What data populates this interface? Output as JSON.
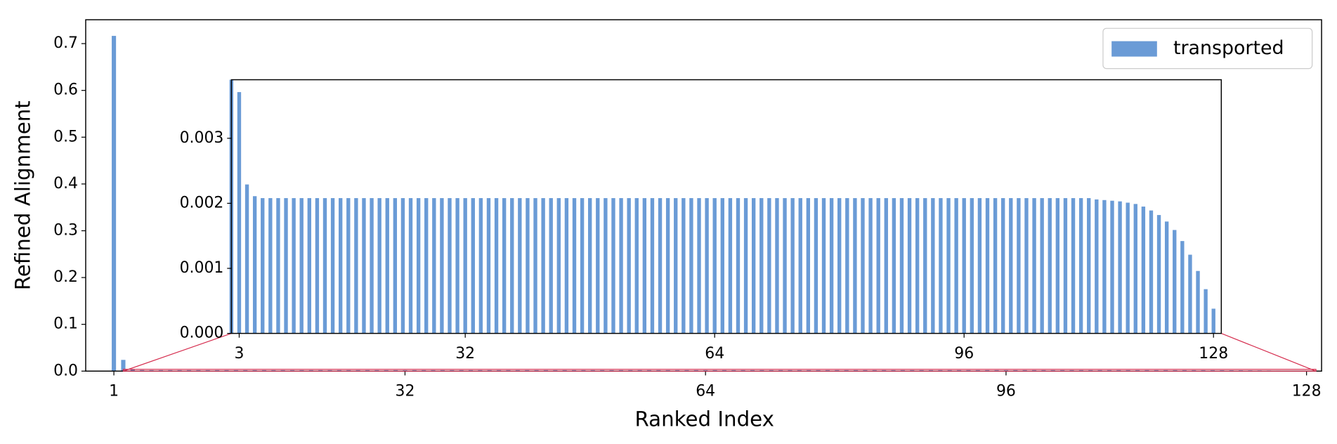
{
  "chart_data": {
    "type": "bar",
    "xlabel": "Ranked Index",
    "ylabel": "Refined Alignment",
    "x": [
      1,
      2,
      3,
      4,
      5,
      6,
      7,
      8,
      9,
      10,
      11,
      12,
      13,
      14,
      15,
      16,
      17,
      18,
      19,
      20,
      21,
      22,
      23,
      24,
      25,
      26,
      27,
      28,
      29,
      30,
      31,
      32,
      33,
      34,
      35,
      36,
      37,
      38,
      39,
      40,
      41,
      42,
      43,
      44,
      45,
      46,
      47,
      48,
      49,
      50,
      51,
      52,
      53,
      54,
      55,
      56,
      57,
      58,
      59,
      60,
      61,
      62,
      63,
      64,
      65,
      66,
      67,
      68,
      69,
      70,
      71,
      72,
      73,
      74,
      75,
      76,
      77,
      78,
      79,
      80,
      81,
      82,
      83,
      84,
      85,
      86,
      87,
      88,
      89,
      90,
      91,
      92,
      93,
      94,
      95,
      96,
      97,
      98,
      99,
      100,
      101,
      102,
      103,
      104,
      105,
      106,
      107,
      108,
      109,
      110,
      111,
      112,
      113,
      114,
      115,
      116,
      117,
      118,
      119,
      120,
      121,
      122,
      123,
      124,
      125,
      126,
      127,
      128
    ],
    "series": [
      {
        "name": "transported",
        "color": "#6a9bd6",
        "values": [
          0.7165,
          0.024,
          0.00371,
          0.00229,
          0.00211,
          0.00208,
          0.00208,
          0.00208,
          0.00208,
          0.00208,
          0.00208,
          0.00208,
          0.00208,
          0.00208,
          0.00208,
          0.00208,
          0.00208,
          0.00208,
          0.00208,
          0.00208,
          0.00208,
          0.00208,
          0.00208,
          0.00208,
          0.00208,
          0.00208,
          0.00208,
          0.00208,
          0.00208,
          0.00208,
          0.00208,
          0.00208,
          0.00208,
          0.00208,
          0.00208,
          0.00208,
          0.00208,
          0.00208,
          0.00208,
          0.00208,
          0.00208,
          0.00208,
          0.00208,
          0.00208,
          0.00208,
          0.00208,
          0.00208,
          0.00208,
          0.00208,
          0.00208,
          0.00208,
          0.00208,
          0.00208,
          0.00208,
          0.00208,
          0.00208,
          0.00208,
          0.00208,
          0.00208,
          0.00208,
          0.00208,
          0.00208,
          0.00208,
          0.00208,
          0.00208,
          0.00208,
          0.00208,
          0.00208,
          0.00208,
          0.00208,
          0.00208,
          0.00208,
          0.00208,
          0.00208,
          0.00208,
          0.00208,
          0.00208,
          0.00208,
          0.00208,
          0.00208,
          0.00208,
          0.00208,
          0.00208,
          0.00208,
          0.00208,
          0.00208,
          0.00208,
          0.00208,
          0.00208,
          0.00208,
          0.00208,
          0.00208,
          0.00208,
          0.00208,
          0.00208,
          0.00208,
          0.00208,
          0.00208,
          0.00208,
          0.00208,
          0.00208,
          0.00208,
          0.00208,
          0.00208,
          0.00208,
          0.00208,
          0.00208,
          0.00208,
          0.00208,
          0.00208,
          0.00208,
          0.00208,
          0.00206,
          0.00205,
          0.00204,
          0.00203,
          0.00201,
          0.00199,
          0.00195,
          0.00189,
          0.00182,
          0.00172,
          0.00159,
          0.00142,
          0.00121,
          0.00096,
          0.00068,
          0.00038
        ]
      }
    ],
    "xlim": [
      -2,
      129.6
    ],
    "ylim": [
      0,
      0.751
    ],
    "xticks": [
      1,
      32,
      64,
      96,
      128
    ],
    "yticks": [
      {
        "value": 0,
        "label": "0.0"
      },
      0.1,
      0.2,
      0.3,
      0.4,
      0.5,
      0.6,
      0.7
    ],
    "legend": "upper right",
    "inset": {
      "xlim": [
        2,
        129
      ],
      "ylim": [
        0,
        0.0039
      ],
      "xticks": [
        3,
        32,
        64,
        96,
        128
      ],
      "yticks": [
        {
          "value": 0,
          "label": "0.000"
        },
        0.001,
        0.002,
        0.003
      ]
    }
  }
}
